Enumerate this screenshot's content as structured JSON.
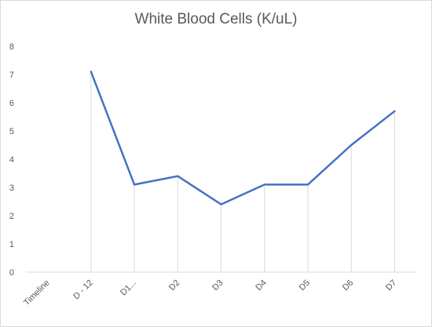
{
  "chart_data": {
    "type": "line",
    "title": "White Blood Cells (K/uL)",
    "xlabel": "",
    "ylabel": "",
    "categories": [
      "Timeline",
      "D - 12",
      "D1...",
      "D2",
      "D3",
      "D4",
      "D5",
      "D6",
      "D7"
    ],
    "series": [
      {
        "values": [
          null,
          7.1,
          3.1,
          3.4,
          2.4,
          3.1,
          3.1,
          4.5,
          5.7
        ],
        "color": "#4472c4"
      }
    ],
    "ylim": [
      0,
      8
    ],
    "yticks": [
      "0",
      "1",
      "2",
      "3",
      "4",
      "5",
      "6",
      "7",
      "8"
    ],
    "drop_lines": true,
    "drop_line_color": "#d9d9d9",
    "grid": false,
    "legend": "none"
  }
}
